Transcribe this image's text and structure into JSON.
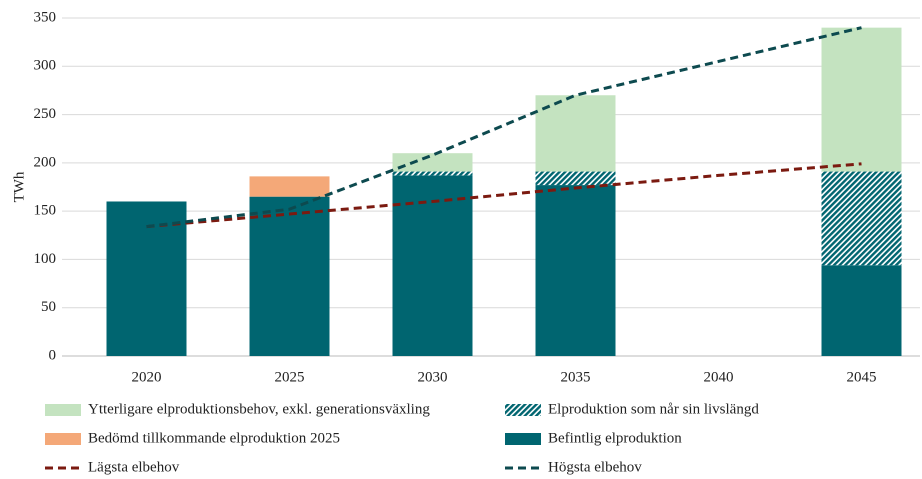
{
  "chart_data": {
    "type": "bar",
    "stacked": true,
    "ylabel": "TWh",
    "categories": [
      "2020",
      "2025",
      "2030",
      "2035",
      "2040",
      "2045"
    ],
    "ylim": [
      0,
      350
    ],
    "yticks": [
      0,
      50,
      100,
      150,
      200,
      250,
      300,
      350
    ],
    "grid": true,
    "series": [
      {
        "name": "Befintlig elproduktion",
        "color": "#006570",
        "values": [
          160,
          165,
          187,
          177,
          null,
          94
        ]
      },
      {
        "name": "Bedömd tillkommande elproduktion 2025",
        "color": "#f4a878",
        "values": [
          null,
          21,
          null,
          null,
          null,
          null
        ]
      },
      {
        "name": "Elproduktion som når sin livslängd",
        "color": "#006570",
        "pattern": "hatch",
        "values": [
          null,
          null,
          4,
          14,
          null,
          97
        ]
      },
      {
        "name": "Ytterligare elproduktionsbehov, exkl. generationsväxling",
        "color": "#c4e3c0",
        "values": [
          null,
          null,
          19,
          79,
          null,
          149
        ]
      },
      {
        "type": "line",
        "name": "Lägsta elbehov",
        "color": "#7b1a10",
        "dashed": true,
        "values": [
          134,
          147,
          160,
          174,
          187,
          199
        ]
      },
      {
        "type": "line",
        "name": "Högsta elbehov",
        "color": "#0d4a4f",
        "dashed": true,
        "values": [
          134,
          152,
          208,
          270,
          305,
          340
        ]
      }
    ],
    "legend_order": [
      3,
      2,
      1,
      0,
      4,
      5
    ]
  }
}
